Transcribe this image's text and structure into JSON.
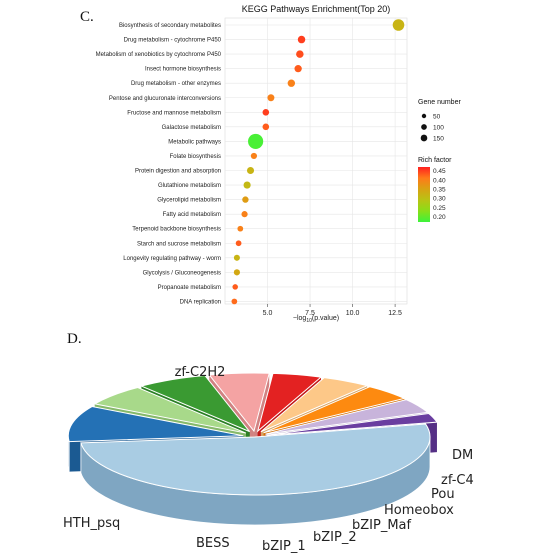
{
  "panels": {
    "c_letter": "C.",
    "d_letter": "D."
  },
  "chart_data": [
    {
      "type": "scatter",
      "title": "KEGG Pathways Enrichment(Top 20)",
      "xlabel_prefix": "−log",
      "xlabel_sub": "10",
      "xlabel_suffix": "(p.value)",
      "xlim": [
        2.5,
        13.2
      ],
      "xticks": [
        5.0,
        7.5,
        10.0,
        12.5
      ],
      "xtick_labels": [
        "5.0",
        "7.5",
        "10.0",
        "12.5"
      ],
      "grid": true,
      "size_legend": {
        "title": "Gene number",
        "values": [
          50,
          100,
          150
        ],
        "labels": [
          "50",
          "100",
          "150"
        ]
      },
      "color_legend": {
        "title": "Rich factor",
        "min": 0.17,
        "max": 0.47,
        "ticks": [
          0.45,
          0.4,
          0.35,
          0.3,
          0.25,
          0.2
        ],
        "labels": [
          "0.45",
          "0.40",
          "0.35",
          "0.30",
          "0.25",
          "0.20"
        ],
        "colors": [
          "#ff2020",
          "#ff7a1a",
          "#d8a313",
          "#b8c414",
          "#8ade18",
          "#3cf33c"
        ]
      },
      "points": [
        {
          "name": "Biosynthesis of secondary metabolites",
          "x": 12.7,
          "gene_number": 80,
          "rich_factor": 0.32
        },
        {
          "name": "Drug metabolism - cytochrome P450",
          "x": 7.0,
          "gene_number": 22,
          "rich_factor": 0.45
        },
        {
          "name": "Metabolism of xenobiotics by cytochrome P450",
          "x": 6.9,
          "gene_number": 22,
          "rich_factor": 0.44
        },
        {
          "name": "Insect hormone biosynthesis",
          "x": 6.8,
          "gene_number": 20,
          "rich_factor": 0.43
        },
        {
          "name": "Drug metabolism - other enzymes",
          "x": 6.4,
          "gene_number": 21,
          "rich_factor": 0.4
        },
        {
          "name": "Pentose and glucuronate interconversions",
          "x": 5.2,
          "gene_number": 17,
          "rich_factor": 0.4
        },
        {
          "name": "Fructose and mannose metabolism",
          "x": 4.9,
          "gene_number": 14,
          "rich_factor": 0.45
        },
        {
          "name": "Galactose metabolism",
          "x": 4.9,
          "gene_number": 14,
          "rich_factor": 0.43
        },
        {
          "name": "Metabolic pathways",
          "x": 4.3,
          "gene_number": 160,
          "rich_factor": 0.18
        },
        {
          "name": "Folate biosynthesis",
          "x": 4.2,
          "gene_number": 11,
          "rich_factor": 0.4
        },
        {
          "name": "Protein digestion and absorption",
          "x": 4.0,
          "gene_number": 18,
          "rich_factor": 0.32
        },
        {
          "name": "Glutathione metabolism",
          "x": 3.8,
          "gene_number": 19,
          "rich_factor": 0.31
        },
        {
          "name": "Glycerolipid metabolism",
          "x": 3.7,
          "gene_number": 12,
          "rich_factor": 0.36
        },
        {
          "name": "Fatty acid metabolism",
          "x": 3.65,
          "gene_number": 11,
          "rich_factor": 0.4
        },
        {
          "name": "Terpenoid backbone biosynthesis",
          "x": 3.4,
          "gene_number": 8,
          "rich_factor": 0.4
        },
        {
          "name": "Starch and sucrose metabolism",
          "x": 3.3,
          "gene_number": 8,
          "rich_factor": 0.43
        },
        {
          "name": "Longevity regulating pathway - worm",
          "x": 3.2,
          "gene_number": 10,
          "rich_factor": 0.32
        },
        {
          "name": "Glycolysis / Gluconeogenesis",
          "x": 3.2,
          "gene_number": 11,
          "rich_factor": 0.34
        },
        {
          "name": "Propanoate metabolism",
          "x": 3.1,
          "gene_number": 7,
          "rich_factor": 0.43
        },
        {
          "name": "DNA replication",
          "x": 3.05,
          "gene_number": 8,
          "rich_factor": 0.42
        }
      ]
    },
    {
      "type": "pie",
      "style": "3d-exploded",
      "slices": [
        {
          "label": "zf-C2H2",
          "value": 52.0,
          "color": "#a9cce3",
          "side": "#7fa6c2",
          "explode": 0
        },
        {
          "label": "HTH_psq",
          "value": 10.0,
          "color": "#2471b5",
          "side": "#1b5a92",
          "explode": 1
        },
        {
          "label": "BESS",
          "value": 6.0,
          "color": "#a8d98a",
          "side": "#86b96b",
          "explode": 1
        },
        {
          "label": "bZIP_1",
          "value": 6.5,
          "color": "#3a9a32",
          "side": "#2b7f25",
          "explode": 1
        },
        {
          "label": "bZIP_2",
          "value": 5.5,
          "color": "#f4a3a3",
          "side": "#d18282",
          "explode": 1
        },
        {
          "label": "bZIP_Maf",
          "value": 4.5,
          "color": "#e32222",
          "side": "#c21616",
          "explode": 1
        },
        {
          "label": "Homeobox",
          "value": 4.5,
          "color": "#fdc888",
          "side": "#d6a466",
          "explode": 1
        },
        {
          "label": "Pou",
          "value": 4.5,
          "color": "#fd8a10",
          "side": "#d26e06",
          "explode": 1
        },
        {
          "label": "zf-C4",
          "value": 4.0,
          "color": "#c8b4db",
          "side": "#a793bb",
          "explode": 1
        },
        {
          "label": "DM",
          "value": 2.5,
          "color": "#6a3ea0",
          "side": "#552f85",
          "explode": 1
        }
      ]
    }
  ]
}
